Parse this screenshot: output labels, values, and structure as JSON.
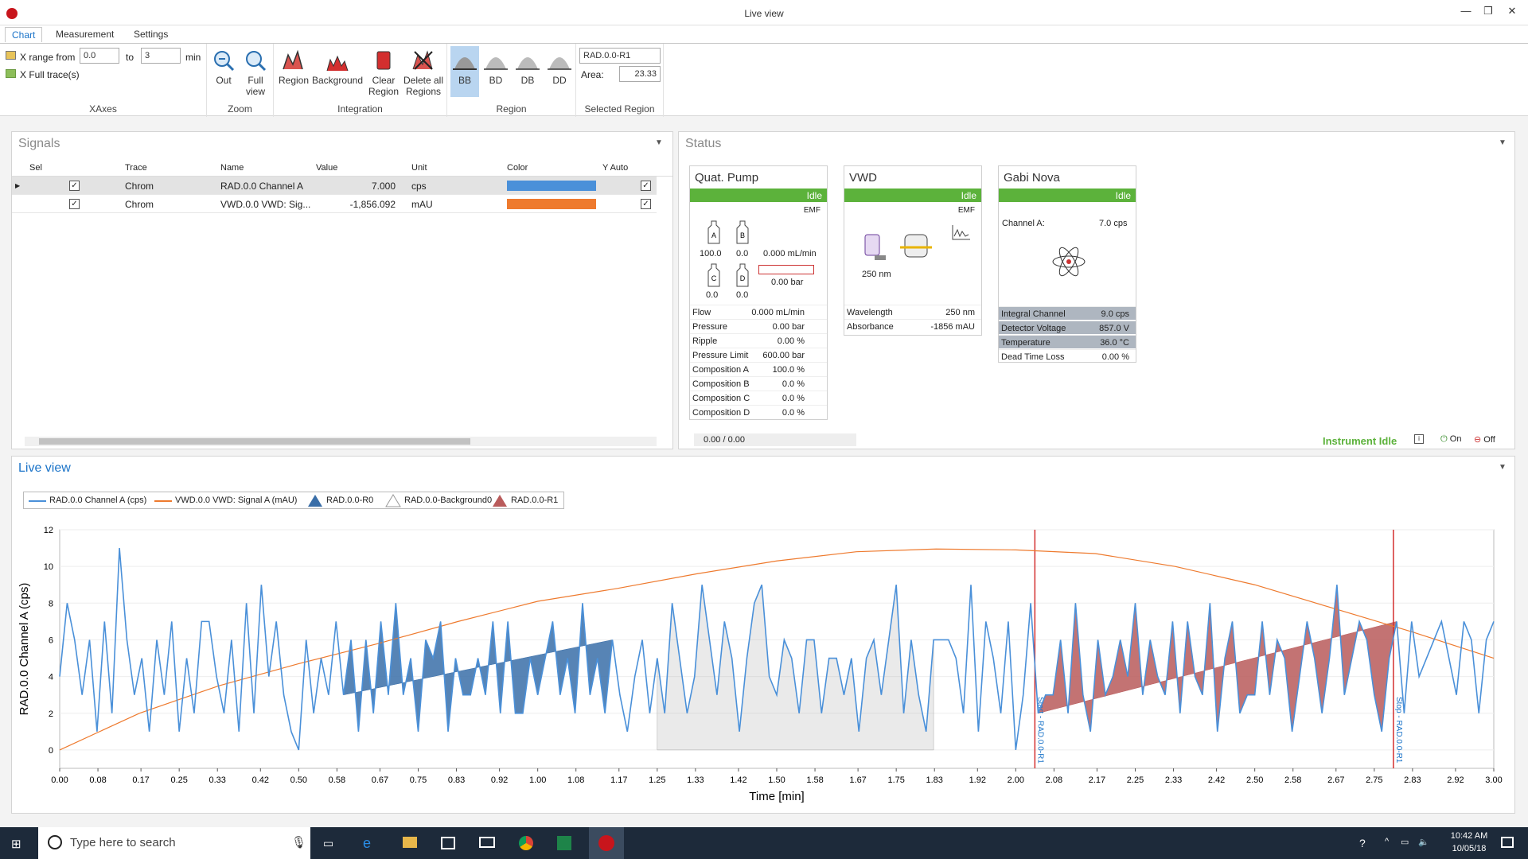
{
  "window": {
    "title": "Live view",
    "minimize": "—",
    "restore": "❐",
    "close": "✕"
  },
  "tabs": [
    "Chart",
    "Measurement",
    "Settings"
  ],
  "ribbon": {
    "xaxes": {
      "xrange_label": "X range from",
      "from_value": "0.0",
      "to_label": "to",
      "to_value": "3",
      "unit": "min",
      "full_trace_label": "X Full trace(s)",
      "group": "XAxes"
    },
    "zoom": {
      "out": "Out",
      "full_view": [
        "Full",
        "view"
      ],
      "group": "Zoom"
    },
    "integration": {
      "region": "Region",
      "background": "Background",
      "clear_region": [
        "Clear",
        "Region"
      ],
      "delete_all": [
        "Delete all",
        "Regions"
      ],
      "group": "Integration"
    },
    "region": {
      "buttons": [
        "BB",
        "BD",
        "DB",
        "DD"
      ],
      "group": "Region"
    },
    "selected": {
      "name_value": "RAD.0.0-R1",
      "area_label": "Area:",
      "area_value": "23.33",
      "group": "Selected Region"
    }
  },
  "signals": {
    "title": "Signals",
    "columns": [
      "Sel",
      "Trace",
      "Name",
      "Value",
      "Unit",
      "Color",
      "Y Auto"
    ],
    "rows": [
      {
        "trace": "Chrom",
        "name": "RAD.0.0 Channel A",
        "value": "7.000",
        "unit": "cps",
        "color": "#4a90d9"
      },
      {
        "trace": "Chrom",
        "name": "VWD.0.0 VWD: Sig...",
        "value": "-1,856.092",
        "unit": "mAU",
        "color": "#ee7a2e"
      }
    ]
  },
  "status": {
    "title": "Status",
    "pump": {
      "name": "Quat. Pump",
      "state": "Idle",
      "emf": "EMF",
      "bottles": [
        {
          "l": "A",
          "v": "100.0"
        },
        {
          "l": "B",
          "v": "0.0"
        },
        {
          "l": "C",
          "v": "0.0"
        },
        {
          "l": "D",
          "v": "0.0"
        }
      ],
      "flow_display": "0.000 mL/min",
      "pressure_display": "0.00 bar",
      "rows": [
        [
          "Flow",
          "0.000 mL/min"
        ],
        [
          "Pressure",
          "0.00 bar"
        ],
        [
          "Ripple",
          "0.00 %"
        ],
        [
          "Pressure Limit",
          "600.00 bar"
        ],
        [
          "Composition A",
          "100.0 %"
        ],
        [
          "Composition B",
          "0.0 %"
        ],
        [
          "Composition C",
          "0.0 %"
        ],
        [
          "Composition D",
          "0.0 %"
        ]
      ]
    },
    "vwd": {
      "name": "VWD",
      "state": "Idle",
      "emf": "EMF",
      "lamp_nm": "250 nm",
      "rows": [
        [
          "Wavelength",
          "250  nm"
        ],
        [
          "Absorbance",
          "-1856 mAU"
        ]
      ]
    },
    "gabi": {
      "name": "Gabi Nova",
      "state": "Idle",
      "channel_label": "Channel A:",
      "channel_value": "7.0  cps",
      "rows": [
        [
          "Integral Channel",
          "9.0 cps"
        ],
        [
          "Detector Voltage",
          "857.0 V"
        ],
        [
          "Temperature",
          "36.0 °C"
        ],
        [
          "Dead Time Loss",
          "0.00 %"
        ]
      ]
    },
    "progress": "0.00 / 0.00",
    "instrument_state": "Instrument Idle",
    "on": "On",
    "off": "Off"
  },
  "live": {
    "title": "Live view",
    "legend": [
      "RAD.0.0 Channel A (cps)",
      "VWD.0.0 VWD: Signal A (mAU)",
      "RAD.0.0-R0",
      "RAD.0.0-Background0",
      "RAD.0.0-R1"
    ],
    "colors": {
      "rad": "#4a90d9",
      "vwd": "#ee7a2e",
      "r0": "#3a6ea8",
      "r1": "#b95b5b"
    }
  },
  "chart_data": {
    "type": "line",
    "xlabel": "Time [min]",
    "ylabel": "RAD.0.0 Channel A (cps)",
    "xlim": [
      0,
      3
    ],
    "ylim": [
      -1,
      12
    ],
    "x_ticks": [
      "0.00",
      "0.08",
      "0.17",
      "0.25",
      "0.33",
      "0.42",
      "0.50",
      "0.58",
      "0.67",
      "0.75",
      "0.83",
      "0.92",
      "1.00",
      "1.08",
      "1.17",
      "1.25",
      "1.33",
      "1.42",
      "1.50",
      "1.58",
      "1.67",
      "1.75",
      "1.83",
      "1.92",
      "2.00",
      "2.08",
      "2.17",
      "2.25",
      "2.33",
      "2.42",
      "2.50",
      "2.58",
      "2.67",
      "2.75",
      "2.83",
      "2.92",
      "3.00"
    ],
    "y_ticks": [
      0,
      2,
      4,
      6,
      8,
      10,
      12
    ],
    "markers": [
      {
        "x": 2.04,
        "label": "Start - RAD.0.0-R1"
      },
      {
        "x": 2.79,
        "label": "Stop - RAD.0.0-R1"
      }
    ],
    "series": [
      {
        "name": "RAD.0.0 Channel A (cps)",
        "values": [
          4,
          8,
          6,
          3,
          6,
          1,
          7,
          2,
          11,
          6,
          3,
          5,
          1,
          6,
          3,
          7,
          1,
          5,
          2,
          7,
          7,
          4,
          2,
          6,
          1,
          8,
          2,
          9,
          4,
          7,
          3,
          1,
          0,
          6,
          2,
          5,
          3,
          7,
          3,
          6,
          1,
          6,
          2,
          7,
          3,
          8,
          3,
          5,
          1,
          6,
          5,
          7,
          1,
          5,
          3,
          3,
          5,
          3,
          7,
          2,
          7,
          2,
          2,
          5,
          3,
          5,
          7,
          3,
          5,
          2,
          8,
          3,
          5,
          2,
          6,
          3,
          1,
          4,
          6,
          2,
          5,
          2,
          8,
          5,
          2,
          4,
          9,
          6,
          3,
          7,
          5,
          1,
          5,
          8,
          9,
          4,
          3,
          6,
          5,
          2,
          6,
          6,
          2,
          5,
          5,
          3,
          5,
          1,
          5,
          6,
          3,
          6,
          9,
          2,
          6,
          3,
          1,
          6,
          6,
          6,
          5,
          2,
          9,
          1,
          7,
          5,
          2,
          7,
          0,
          3,
          8,
          2,
          3,
          3,
          6,
          2,
          8,
          3,
          1,
          6,
          3,
          4,
          6,
          4,
          8,
          3,
          6,
          4,
          3,
          7,
          2,
          7,
          4,
          3,
          8,
          1,
          5,
          7,
          2,
          3,
          3,
          7,
          3,
          6,
          5,
          1,
          4,
          7,
          5,
          2,
          5,
          9,
          3,
          5,
          7,
          6,
          3,
          1,
          5,
          7,
          2,
          7,
          4,
          5,
          6,
          7,
          5,
          3,
          7,
          6,
          2,
          6,
          7
        ]
      },
      {
        "name": "VWD.0.0 VWD: Signal A (mAU)",
        "values": [
          0,
          2,
          3.5,
          4.7,
          5.8,
          7,
          8.1,
          8.8,
          9.6,
          10.3,
          10.8,
          10.95,
          10.9,
          10.7,
          10,
          9,
          7.7,
          6.4,
          5
        ]
      }
    ]
  },
  "taskbar": {
    "search_placeholder": "Type here to search",
    "time": "10:42 AM",
    "date": "10/05/18"
  }
}
